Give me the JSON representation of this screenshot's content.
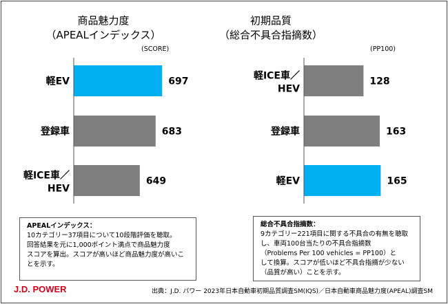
{
  "chart_data": [
    {
      "type": "bar",
      "orientation": "horizontal",
      "title": "商品魅力度",
      "subtitle": "（APEALインデックス）",
      "unit": "(SCORE)",
      "categories": [
        "軽EV",
        "登録車",
        "軽ICE車／HEV"
      ],
      "values": [
        697,
        683,
        649
      ],
      "colors": [
        "#00B0F0",
        "#7F7F7F",
        "#7F7F7F"
      ],
      "xlim": [
        507,
        900
      ],
      "grid": false
    },
    {
      "type": "bar",
      "orientation": "horizontal",
      "title": "初期品質",
      "subtitle": "（総合不具合指摘数）",
      "unit": "(PP100)",
      "categories": [
        "軽ICE車／HEV",
        "登録車",
        "軽EV"
      ],
      "values": [
        128,
        163,
        165
      ],
      "colors": [
        "#7F7F7F",
        "#7F7F7F",
        "#00B0F0"
      ],
      "xlim": [
        0,
        300
      ],
      "grid": false
    }
  ],
  "notes": [
    {
      "heading": "APEALインデックス：",
      "lines": [
        "10カテゴリー37項目について10段階評価を聴取。",
        "回答結果を元に1,000ポイント満点で商品魅力度",
        "スコアを算出。スコアが高いほど商品魅力度が高いこ",
        "とを示す。"
      ]
    },
    {
      "heading": "総合不具合指摘数：",
      "lines": [
        "9カテゴリー221項目に関する不具合の有無を聴取",
        "し、車両100台当たりの不具合指摘数",
        "（Problems Per 100 vehicles = PP100）と",
        "して換算。スコアが低いほど不具合指摘が少ない",
        "（品質が高い）ことを示す。"
      ]
    }
  ],
  "footer": {
    "logo": "J.D. POWER",
    "source": "出典：J.D. パワー 2023年日本自動車初期品質調査SM(IQS)／日本自動車商品魅力度(APEAL)調査SM"
  }
}
